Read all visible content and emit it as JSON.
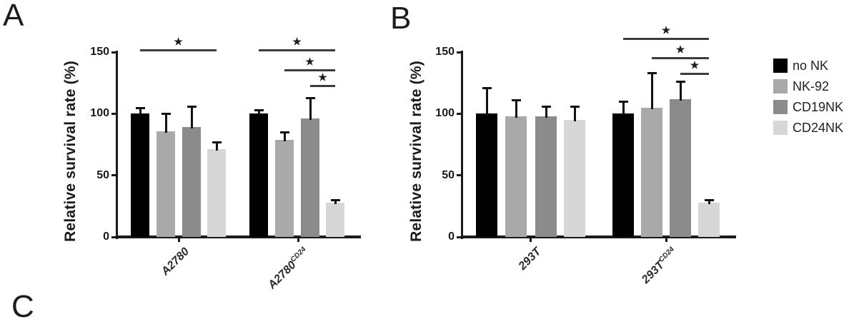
{
  "panel_labels": {
    "a": "A",
    "b": "B",
    "c_partial": "C"
  },
  "legend": {
    "position": "right",
    "items": [
      {
        "label": "no NK",
        "color": "#000000"
      },
      {
        "label": "NK-92",
        "color": "#a9a9a9"
      },
      {
        "label": "CD19NK",
        "color": "#8b8b8b"
      },
      {
        "label": "CD24NK",
        "color": "#d7d7d7"
      }
    ]
  },
  "chart_data": [
    {
      "type": "bar",
      "panel": "A",
      "title": "",
      "ylabel": "Relative survival rate (%)",
      "xlabel": "",
      "ylim": [
        0,
        150
      ],
      "yticks": [
        0,
        50,
        100,
        150
      ],
      "grid": false,
      "categories": [
        {
          "base": "A2780",
          "sup": ""
        },
        {
          "base": "A2780",
          "sup": "CD24"
        }
      ],
      "series": [
        {
          "name": "no NK",
          "values": [
            100,
            100
          ],
          "errors": [
            5,
            3
          ]
        },
        {
          "name": "NK-92",
          "values": [
            86,
            79
          ],
          "errors": [
            14,
            6
          ]
        },
        {
          "name": "CD19NK",
          "values": [
            89,
            96
          ],
          "errors": [
            17,
            17
          ]
        },
        {
          "name": "CD24NK",
          "values": [
            71,
            28
          ],
          "errors": [
            6,
            2
          ]
        }
      ],
      "significance": [
        {
          "category": 0,
          "from": "no NK",
          "to": "CD24NK",
          "label": "★"
        },
        {
          "category": 1,
          "from": "no NK",
          "to": "CD24NK",
          "label": "★"
        },
        {
          "category": 1,
          "from": "NK-92",
          "to": "CD24NK",
          "label": "★"
        },
        {
          "category": 1,
          "from": "CD19NK",
          "to": "CD24NK",
          "label": "★"
        }
      ]
    },
    {
      "type": "bar",
      "panel": "B",
      "title": "",
      "ylabel": "Relative survival rate (%)",
      "xlabel": "",
      "ylim": [
        0,
        150
      ],
      "yticks": [
        0,
        50,
        100,
        150
      ],
      "grid": false,
      "categories": [
        {
          "base": "293T",
          "sup": ""
        },
        {
          "base": "293T",
          "sup": "CD24"
        }
      ],
      "series": [
        {
          "name": "no NK",
          "values": [
            100,
            100
          ],
          "errors": [
            21,
            10
          ]
        },
        {
          "name": "NK-92",
          "values": [
            98,
            105
          ],
          "errors": [
            13,
            28
          ]
        },
        {
          "name": "CD19NK",
          "values": [
            98,
            112
          ],
          "errors": [
            8,
            14
          ]
        },
        {
          "name": "CD24NK",
          "values": [
            95,
            28
          ],
          "errors": [
            11,
            2
          ]
        }
      ],
      "significance": [
        {
          "category": 1,
          "from": "no NK",
          "to": "CD24NK",
          "label": "★"
        },
        {
          "category": 1,
          "from": "NK-92",
          "to": "CD24NK",
          "label": "★"
        },
        {
          "category": 1,
          "from": "CD19NK",
          "to": "CD24NK",
          "label": "★"
        }
      ]
    }
  ]
}
